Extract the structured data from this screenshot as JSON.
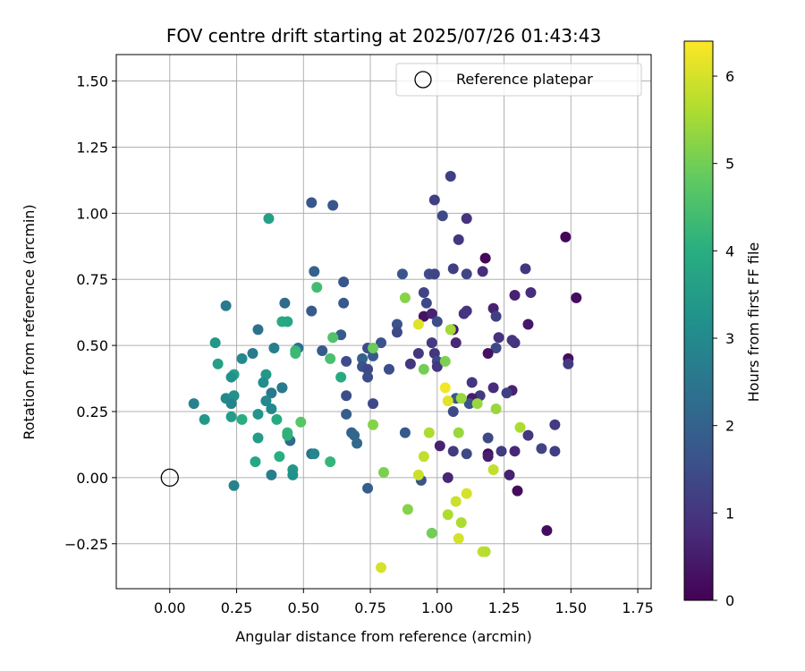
{
  "chart_data": {
    "type": "scatter",
    "title": "FOV centre drift starting at 2025/07/26 01:43:43",
    "xlabel": "Angular distance from reference (arcmin)",
    "ylabel": "Rotation from reference (arcmin)",
    "xlim": [
      -0.2,
      1.8
    ],
    "ylim": [
      -0.42,
      1.6
    ],
    "xticks": [
      0.0,
      0.25,
      0.5,
      0.75,
      1.0,
      1.25,
      1.5,
      1.75
    ],
    "xtick_labels": [
      "0.00",
      "0.25",
      "0.50",
      "0.75",
      "1.00",
      "1.25",
      "1.50",
      "1.75"
    ],
    "yticks": [
      -0.25,
      0.0,
      0.25,
      0.5,
      0.75,
      1.0,
      1.25,
      1.5
    ],
    "ytick_labels": [
      "−0.25",
      "0.00",
      "0.25",
      "0.50",
      "0.75",
      "1.00",
      "1.25",
      "1.50"
    ],
    "grid": true,
    "legend": {
      "position": "top-right",
      "label": "Reference platepar",
      "marker": "open-circle"
    },
    "reference_point": {
      "x": 0.0,
      "y": 0.0
    },
    "colormap": "viridis",
    "colorbar": {
      "label": "Hours from first FF file",
      "range": [
        0,
        6.4
      ],
      "ticks": [
        0,
        1,
        2,
        3,
        4,
        5,
        6
      ],
      "tick_labels": [
        "0",
        "1",
        "2",
        "3",
        "4",
        "5",
        "6"
      ]
    },
    "points": [
      {
        "x": 1.05,
        "y": 1.14,
        "c": 1.2
      },
      {
        "x": 0.99,
        "y": 1.05,
        "c": 1.2
      },
      {
        "x": 1.02,
        "y": 0.99,
        "c": 1.4
      },
      {
        "x": 1.11,
        "y": 0.98,
        "c": 0.9
      },
      {
        "x": 1.08,
        "y": 0.9,
        "c": 1.0
      },
      {
        "x": 1.48,
        "y": 0.91,
        "c": 0.1
      },
      {
        "x": 1.18,
        "y": 0.83,
        "c": 0.1
      },
      {
        "x": 1.06,
        "y": 0.79,
        "c": 1.2
      },
      {
        "x": 1.11,
        "y": 0.77,
        "c": 1.3
      },
      {
        "x": 1.17,
        "y": 0.78,
        "c": 0.8
      },
      {
        "x": 0.97,
        "y": 0.77,
        "c": 1.5
      },
      {
        "x": 0.99,
        "y": 0.77,
        "c": 1.3
      },
      {
        "x": 1.33,
        "y": 0.79,
        "c": 1.0
      },
      {
        "x": 0.95,
        "y": 0.7,
        "c": 1.3
      },
      {
        "x": 1.29,
        "y": 0.69,
        "c": 0.6
      },
      {
        "x": 1.35,
        "y": 0.7,
        "c": 0.8
      },
      {
        "x": 1.52,
        "y": 0.68,
        "c": 0.2
      },
      {
        "x": 0.96,
        "y": 0.66,
        "c": 1.4
      },
      {
        "x": 1.1,
        "y": 0.62,
        "c": 0.9
      },
      {
        "x": 1.11,
        "y": 0.63,
        "c": 1.0
      },
      {
        "x": 1.21,
        "y": 0.64,
        "c": 0.6
      },
      {
        "x": 0.95,
        "y": 0.61,
        "c": 0.3
      },
      {
        "x": 0.98,
        "y": 0.62,
        "c": 0.6
      },
      {
        "x": 1.22,
        "y": 0.61,
        "c": 1.2
      },
      {
        "x": 1.0,
        "y": 0.59,
        "c": 1.5
      },
      {
        "x": 1.34,
        "y": 0.58,
        "c": 0.4
      },
      {
        "x": 1.06,
        "y": 0.56,
        "c": 0.4
      },
      {
        "x": 1.23,
        "y": 0.53,
        "c": 0.9
      },
      {
        "x": 1.07,
        "y": 0.51,
        "c": 0.7
      },
      {
        "x": 1.29,
        "y": 0.51,
        "c": 0.9
      },
      {
        "x": 1.28,
        "y": 0.52,
        "c": 1.0
      },
      {
        "x": 0.98,
        "y": 0.51,
        "c": 1.1
      },
      {
        "x": 1.22,
        "y": 0.49,
        "c": 1.4
      },
      {
        "x": 1.19,
        "y": 0.47,
        "c": 0.3
      },
      {
        "x": 1.49,
        "y": 0.45,
        "c": 0.2
      },
      {
        "x": 1.49,
        "y": 0.43,
        "c": 1.1
      },
      {
        "x": 0.99,
        "y": 0.47,
        "c": 1.0
      },
      {
        "x": 1.0,
        "y": 0.44,
        "c": 1.4
      },
      {
        "x": 1.0,
        "y": 0.42,
        "c": 1.0
      },
      {
        "x": 0.93,
        "y": 0.47,
        "c": 1.0
      },
      {
        "x": 0.9,
        "y": 0.43,
        "c": 1.0
      },
      {
        "x": 1.13,
        "y": 0.36,
        "c": 1.0
      },
      {
        "x": 1.21,
        "y": 0.34,
        "c": 0.8
      },
      {
        "x": 1.28,
        "y": 0.33,
        "c": 0.6
      },
      {
        "x": 1.26,
        "y": 0.32,
        "c": 1.2
      },
      {
        "x": 1.16,
        "y": 0.31,
        "c": 1.1
      },
      {
        "x": 1.13,
        "y": 0.3,
        "c": 0.5
      },
      {
        "x": 1.12,
        "y": 0.28,
        "c": 1.6
      },
      {
        "x": 1.06,
        "y": 0.25,
        "c": 1.4
      },
      {
        "x": 1.34,
        "y": 0.16,
        "c": 1.0
      },
      {
        "x": 1.44,
        "y": 0.2,
        "c": 1.1
      },
      {
        "x": 1.39,
        "y": 0.11,
        "c": 1.3
      },
      {
        "x": 1.44,
        "y": 0.1,
        "c": 1.2
      },
      {
        "x": 1.19,
        "y": 0.15,
        "c": 1.4
      },
      {
        "x": 1.24,
        "y": 0.1,
        "c": 1.1
      },
      {
        "x": 1.29,
        "y": 0.1,
        "c": 0.7
      },
      {
        "x": 1.19,
        "y": 0.09,
        "c": 0.2
      },
      {
        "x": 1.19,
        "y": 0.08,
        "c": 0.5
      },
      {
        "x": 1.06,
        "y": 0.1,
        "c": 1.1
      },
      {
        "x": 1.11,
        "y": 0.09,
        "c": 1.4
      },
      {
        "x": 1.01,
        "y": 0.12,
        "c": 0.6
      },
      {
        "x": 1.27,
        "y": 0.01,
        "c": 0.6
      },
      {
        "x": 1.3,
        "y": -0.05,
        "c": 0.2
      },
      {
        "x": 1.04,
        "y": 0.0,
        "c": 0.7
      },
      {
        "x": 1.41,
        "y": -0.2,
        "c": 0.2
      },
      {
        "x": 0.94,
        "y": -0.01,
        "c": 1.6
      },
      {
        "x": 1.07,
        "y": 0.3,
        "c": 1.7
      },
      {
        "x": 0.87,
        "y": 0.77,
        "c": 1.7
      },
      {
        "x": 0.85,
        "y": 0.58,
        "c": 1.6
      },
      {
        "x": 0.85,
        "y": 0.55,
        "c": 1.4
      },
      {
        "x": 0.79,
        "y": 0.51,
        "c": 1.6
      },
      {
        "x": 0.74,
        "y": 0.49,
        "c": 1.5
      },
      {
        "x": 0.76,
        "y": 0.46,
        "c": 1.8
      },
      {
        "x": 0.72,
        "y": 0.45,
        "c": 2.0
      },
      {
        "x": 0.72,
        "y": 0.42,
        "c": 1.6
      },
      {
        "x": 0.74,
        "y": 0.41,
        "c": 1.4
      },
      {
        "x": 0.82,
        "y": 0.41,
        "c": 1.5
      },
      {
        "x": 0.74,
        "y": 0.38,
        "c": 1.5
      },
      {
        "x": 0.76,
        "y": 0.28,
        "c": 1.4
      },
      {
        "x": 0.65,
        "y": 0.74,
        "c": 1.7
      },
      {
        "x": 0.65,
        "y": 0.66,
        "c": 1.8
      },
      {
        "x": 0.54,
        "y": 0.78,
        "c": 2.0
      },
      {
        "x": 0.53,
        "y": 0.63,
        "c": 1.8
      },
      {
        "x": 0.57,
        "y": 0.48,
        "c": 1.8
      },
      {
        "x": 0.64,
        "y": 0.54,
        "c": 1.8
      },
      {
        "x": 0.66,
        "y": 0.44,
        "c": 1.5
      },
      {
        "x": 0.66,
        "y": 0.31,
        "c": 1.5
      },
      {
        "x": 0.66,
        "y": 0.24,
        "c": 1.9
      },
      {
        "x": 0.68,
        "y": 0.17,
        "c": 2.0
      },
      {
        "x": 0.69,
        "y": 0.16,
        "c": 2.1
      },
      {
        "x": 0.7,
        "y": 0.13,
        "c": 2.2
      },
      {
        "x": 0.88,
        "y": 0.17,
        "c": 1.8
      },
      {
        "x": 0.74,
        "y": -0.04,
        "c": 1.9
      },
      {
        "x": 0.53,
        "y": 1.04,
        "c": 1.7
      },
      {
        "x": 0.61,
        "y": 1.03,
        "c": 1.7
      },
      {
        "x": 0.53,
        "y": 0.09,
        "c": 2.3
      },
      {
        "x": 0.43,
        "y": 0.66,
        "c": 2.2
      },
      {
        "x": 0.48,
        "y": 0.49,
        "c": 2.3
      },
      {
        "x": 0.45,
        "y": 0.14,
        "c": 2.2
      },
      {
        "x": 0.37,
        "y": 0.98,
        "c": 3.6
      },
      {
        "x": 0.21,
        "y": 0.65,
        "c": 2.6
      },
      {
        "x": 0.33,
        "y": 0.56,
        "c": 2.4
      },
      {
        "x": 0.42,
        "y": 0.59,
        "c": 3.9
      },
      {
        "x": 0.44,
        "y": 0.59,
        "c": 3.8
      },
      {
        "x": 0.39,
        "y": 0.49,
        "c": 2.7
      },
      {
        "x": 0.17,
        "y": 0.51,
        "c": 3.4
      },
      {
        "x": 0.27,
        "y": 0.45,
        "c": 3.0
      },
      {
        "x": 0.31,
        "y": 0.47,
        "c": 2.6
      },
      {
        "x": 0.18,
        "y": 0.43,
        "c": 3.6
      },
      {
        "x": 0.24,
        "y": 0.39,
        "c": 3.6
      },
      {
        "x": 0.23,
        "y": 0.38,
        "c": 3.2
      },
      {
        "x": 0.36,
        "y": 0.39,
        "c": 3.4
      },
      {
        "x": 0.35,
        "y": 0.36,
        "c": 3.1
      },
      {
        "x": 0.42,
        "y": 0.34,
        "c": 2.4
      },
      {
        "x": 0.42,
        "y": 0.34,
        "c": 2.6
      },
      {
        "x": 0.38,
        "y": 0.32,
        "c": 2.6
      },
      {
        "x": 0.36,
        "y": 0.29,
        "c": 3.0
      },
      {
        "x": 0.09,
        "y": 0.28,
        "c": 2.8
      },
      {
        "x": 0.21,
        "y": 0.3,
        "c": 3.0
      },
      {
        "x": 0.24,
        "y": 0.31,
        "c": 3.2
      },
      {
        "x": 0.23,
        "y": 0.28,
        "c": 2.9
      },
      {
        "x": 0.33,
        "y": 0.24,
        "c": 3.3
      },
      {
        "x": 0.38,
        "y": 0.26,
        "c": 3.0
      },
      {
        "x": 0.13,
        "y": 0.22,
        "c": 3.4
      },
      {
        "x": 0.23,
        "y": 0.23,
        "c": 3.5
      },
      {
        "x": 0.27,
        "y": 0.22,
        "c": 4.0
      },
      {
        "x": 0.4,
        "y": 0.22,
        "c": 3.9
      },
      {
        "x": 0.33,
        "y": 0.15,
        "c": 3.5
      },
      {
        "x": 0.44,
        "y": 0.17,
        "c": 4.2
      },
      {
        "x": 0.44,
        "y": 0.16,
        "c": 4.1
      },
      {
        "x": 0.32,
        "y": 0.06,
        "c": 3.8
      },
      {
        "x": 0.41,
        "y": 0.08,
        "c": 4.0
      },
      {
        "x": 0.46,
        "y": 0.03,
        "c": 3.4
      },
      {
        "x": 0.46,
        "y": 0.01,
        "c": 3.2
      },
      {
        "x": 0.38,
        "y": 0.01,
        "c": 2.7
      },
      {
        "x": 0.24,
        "y": -0.03,
        "c": 2.8
      },
      {
        "x": 0.54,
        "y": 0.09,
        "c": 2.9
      },
      {
        "x": 0.6,
        "y": 0.06,
        "c": 4.2
      },
      {
        "x": 0.64,
        "y": 0.38,
        "c": 3.9
      },
      {
        "x": 0.55,
        "y": 0.72,
        "c": 4.4
      },
      {
        "x": 0.61,
        "y": 0.53,
        "c": 4.6
      },
      {
        "x": 0.47,
        "y": 0.48,
        "c": 4.2
      },
      {
        "x": 0.47,
        "y": 0.47,
        "c": 4.3
      },
      {
        "x": 0.6,
        "y": 0.45,
        "c": 4.5
      },
      {
        "x": 0.49,
        "y": 0.21,
        "c": 4.7
      },
      {
        "x": 0.76,
        "y": 0.49,
        "c": 4.9
      },
      {
        "x": 0.76,
        "y": 0.2,
        "c": 5.2
      },
      {
        "x": 0.8,
        "y": 0.02,
        "c": 5.1
      },
      {
        "x": 0.88,
        "y": 0.68,
        "c": 5.2
      },
      {
        "x": 0.95,
        "y": 0.41,
        "c": 5.0
      },
      {
        "x": 1.05,
        "y": 0.56,
        "c": 5.5
      },
      {
        "x": 1.03,
        "y": 0.44,
        "c": 5.1
      },
      {
        "x": 1.09,
        "y": 0.3,
        "c": 5.4
      },
      {
        "x": 1.15,
        "y": 0.28,
        "c": 5.4
      },
      {
        "x": 1.22,
        "y": 0.26,
        "c": 5.4
      },
      {
        "x": 1.08,
        "y": 0.17,
        "c": 5.4
      },
      {
        "x": 0.97,
        "y": 0.17,
        "c": 5.6
      },
      {
        "x": 1.31,
        "y": 0.19,
        "c": 5.6
      },
      {
        "x": 0.95,
        "y": 0.08,
        "c": 5.8
      },
      {
        "x": 0.93,
        "y": 0.01,
        "c": 5.9
      },
      {
        "x": 1.21,
        "y": 0.03,
        "c": 5.8
      },
      {
        "x": 0.89,
        "y": -0.12,
        "c": 5.2
      },
      {
        "x": 0.98,
        "y": -0.21,
        "c": 5.0
      },
      {
        "x": 1.04,
        "y": -0.14,
        "c": 5.6
      },
      {
        "x": 1.09,
        "y": -0.17,
        "c": 5.6
      },
      {
        "x": 1.07,
        "y": -0.09,
        "c": 5.9
      },
      {
        "x": 1.11,
        "y": -0.06,
        "c": 6.0
      },
      {
        "x": 1.08,
        "y": -0.23,
        "c": 6.0
      },
      {
        "x": 1.17,
        "y": -0.28,
        "c": 5.8
      },
      {
        "x": 1.18,
        "y": -0.28,
        "c": 5.7
      },
      {
        "x": 0.79,
        "y": -0.34,
        "c": 6.0
      },
      {
        "x": 0.93,
        "y": 0.58,
        "c": 6.1
      },
      {
        "x": 1.03,
        "y": 0.34,
        "c": 6.3
      },
      {
        "x": 1.04,
        "y": 0.29,
        "c": 6.1
      }
    ]
  }
}
